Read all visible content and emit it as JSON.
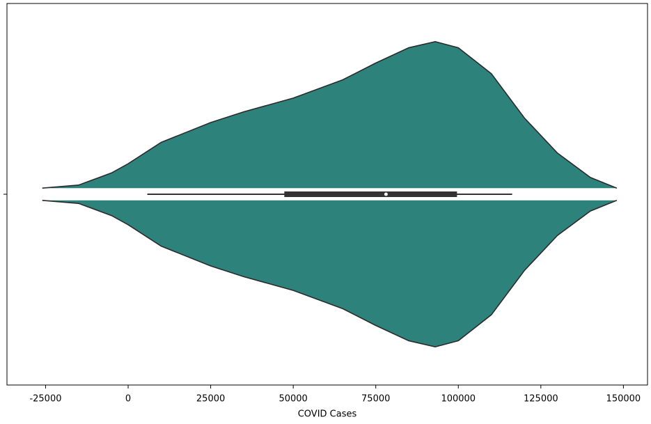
{
  "chart_data": {
    "type": "violin",
    "xlabel": "COVID Cases",
    "xlim": [
      -36700,
      157300
    ],
    "xticks": [
      -25000,
      0,
      25000,
      50000,
      75000,
      100000,
      125000,
      150000
    ],
    "color": "#2e827c",
    "outline_color": "#2b2b2b",
    "x": [
      -26000,
      -15000,
      -5000,
      0,
      10000,
      25000,
      35000,
      50000,
      65000,
      75000,
      85000,
      93000,
      100000,
      110000,
      120000,
      130000,
      140000,
      148000
    ],
    "density": [
      0.04,
      0.06,
      0.14,
      0.2,
      0.34,
      0.47,
      0.54,
      0.63,
      0.75,
      0.86,
      0.96,
      1.0,
      0.96,
      0.79,
      0.5,
      0.27,
      0.11,
      0.04
    ],
    "box": {
      "whisker_low": 5800,
      "q1": 47300,
      "median": 78100,
      "q3": 99600,
      "whisker_high": 116300
    }
  }
}
